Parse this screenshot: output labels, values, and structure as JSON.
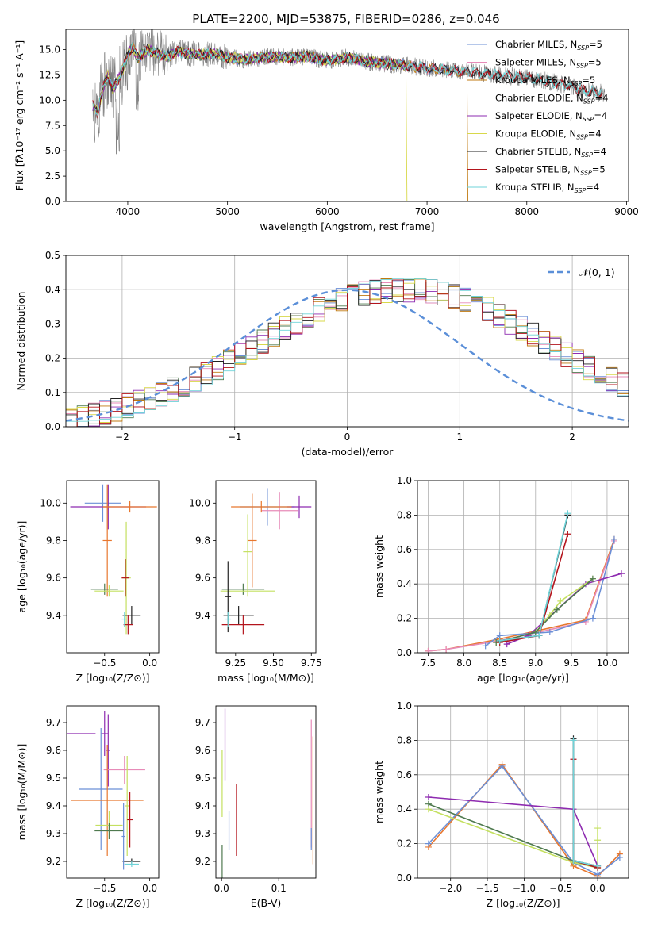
{
  "figure": {
    "title": "PLATE=2200, MJD=53875, FIBERID=0286, z=0.046",
    "colors": {
      "chabrier_miles": "#6b8fd6",
      "salpeter_miles": "#e78bb8",
      "kroupa_miles": "#c07a10",
      "chabrier_elodie": "#4f7a4f",
      "salpeter_elodie": "#8e2bb0",
      "kroupa_elodie": "#d8d84a",
      "chabrier_stelib": "#222222",
      "salpeter_stelib": "#b3141c",
      "kroupa_stelib": "#6fd3d8",
      "observed": "#7f7f7f",
      "miles_family": "#e8772e",
      "elodie_family": "#c4e060",
      "gauss": "#5b8fd8"
    }
  },
  "chart_data": [
    {
      "id": "spectrum",
      "type": "line",
      "title": "PLATE=2200, MJD=53875, FIBERID=0286, z=0.046",
      "xlabel": "wavelength [Angstrom, rest frame]",
      "ylabel": "Flux [fλ10⁻¹⁷ erg cm⁻² s⁻¹ A⁻¹]",
      "xlim": [
        3380,
        9020
      ],
      "ylim": [
        0,
        17
      ],
      "xticks": [
        4000,
        5000,
        6000,
        7000,
        8000,
        9000
      ],
      "yticks": [
        0.0,
        2.5,
        5.0,
        7.5,
        10.0,
        12.5,
        15.0
      ],
      "grid": false,
      "legend_position": "right",
      "spectrum_shape": {
        "x": [
          3650,
          3700,
          3750,
          3800,
          3850,
          3900,
          3950,
          4000,
          4050,
          4100,
          4200,
          4300,
          4400,
          4500,
          4700,
          4900,
          5000,
          5200,
          5400,
          5600,
          5800,
          6000,
          6200,
          6400,
          6600,
          6800,
          7000,
          7200,
          7400,
          7600,
          7800,
          8000,
          8200,
          8400,
          8600,
          8800
        ],
        "y": [
          9.5,
          8.8,
          11.2,
          12.5,
          11.0,
          12.0,
          13.0,
          14.5,
          15.2,
          14.2,
          15.0,
          14.6,
          14.3,
          14.8,
          14.5,
          14.6,
          14.2,
          14.0,
          14.3,
          14.2,
          14.3,
          13.9,
          14.2,
          13.8,
          13.6,
          13.4,
          13.2,
          13.0,
          12.8,
          12.6,
          12.4,
          12.2,
          11.9,
          11.5,
          10.9,
          10.7
        ]
      },
      "series": [
        {
          "name": "Chabrier MILES, N",
          "nssp": "=5",
          "color_key": "chabrier_miles",
          "end": 7400
        },
        {
          "name": "Salpeter MILES, N",
          "nssp": "=5",
          "color_key": "salpeter_miles",
          "end": 7400
        },
        {
          "name": "Kroupa MILES, N",
          "nssp": "=5",
          "color_key": "kroupa_miles",
          "end": 7400,
          "drop": 7410
        },
        {
          "name": "Chabrier ELODIE, N",
          "nssp": "=4",
          "color_key": "chabrier_elodie",
          "end": 6790
        },
        {
          "name": "Salpeter ELODIE, N",
          "nssp": "=4",
          "color_key": "salpeter_elodie",
          "end": 6790
        },
        {
          "name": "Kroupa ELODIE, N",
          "nssp": "=4",
          "color_key": "kroupa_elodie",
          "end": 6790,
          "drop": 6800
        },
        {
          "name": "Chabrier STELIB, N",
          "nssp": "=4",
          "color_key": "chabrier_stelib",
          "end": 8760
        },
        {
          "name": "Salpeter STELIB, N",
          "nssp": "=5",
          "color_key": "salpeter_stelib",
          "end": 8760
        },
        {
          "name": "Kroupa STELIB, N",
          "nssp": "=4",
          "color_key": "kroupa_stelib",
          "end": 8760
        }
      ]
    },
    {
      "id": "residuals",
      "type": "histogram",
      "xlabel": "(data-model)/error",
      "ylabel": "Normed distribution",
      "xlim": [
        -2.5,
        2.5
      ],
      "ylim": [
        0,
        0.5
      ],
      "xticks": [
        -2,
        -1,
        0,
        1,
        2
      ],
      "yticks": [
        0.0,
        0.1,
        0.2,
        0.3,
        0.4,
        0.5
      ],
      "grid": true,
      "legend": "𝒩(0, 1)",
      "legend_position": "top-right",
      "bin_width": 0.1,
      "bin_start": -2.5,
      "base_profile": [
        0.021,
        0.026,
        0.034,
        0.042,
        0.051,
        0.061,
        0.071,
        0.082,
        0.095,
        0.108,
        0.123,
        0.139,
        0.155,
        0.172,
        0.19,
        0.21,
        0.229,
        0.248,
        0.268,
        0.287,
        0.305,
        0.324,
        0.342,
        0.357,
        0.37,
        0.38,
        0.389,
        0.395,
        0.397,
        0.398,
        0.398,
        0.397,
        0.395,
        0.389,
        0.38,
        0.37,
        0.357,
        0.342,
        0.324,
        0.305,
        0.287,
        0.268,
        0.248,
        0.229,
        0.21,
        0.19,
        0.172,
        0.155,
        0.139,
        0.123
      ],
      "gauss": {
        "mean": 0,
        "sigma": 1
      }
    },
    {
      "id": "age_vs_Z",
      "type": "errorbar",
      "xlabel": "Z [log₁₀(Z/Z⊙)]",
      "ylabel": "age  [log₁₀(age/yr)]",
      "xlim": [
        -0.92,
        0.1
      ],
      "ylim": [
        9.2,
        10.12
      ],
      "xticks": [
        -0.5,
        0.0
      ],
      "yticks": [
        9.4,
        9.6,
        9.8,
        10.0
      ],
      "points": [
        {
          "x": -0.52,
          "y": 10.0,
          "xerr": 0.2,
          "yerr": 0.1,
          "color_key": "chabrier_miles"
        },
        {
          "x": -0.46,
          "y": 9.98,
          "xerr": 0.42,
          "yerr": 0.12,
          "color_key": "salpeter_elodie"
        },
        {
          "x": -0.22,
          "y": 9.98,
          "xerr": 0.3,
          "yerr": 0.03,
          "color_key": "miles_family"
        },
        {
          "x": -0.47,
          "y": 9.8,
          "xerr": 0.05,
          "yerr": 0.3,
          "color_key": "miles_family"
        },
        {
          "x": -0.26,
          "y": 9.6,
          "xerr": 0.05,
          "yerr": 0.3,
          "color_key": "elodie_family"
        },
        {
          "x": -0.5,
          "y": 9.54,
          "xerr": 0.15,
          "yerr": 0.03,
          "color_key": "chabrier_elodie"
        },
        {
          "x": -0.45,
          "y": 9.53,
          "xerr": 0.16,
          "yerr": 0.03,
          "color_key": "elodie_family"
        },
        {
          "x": -0.27,
          "y": 9.6,
          "xerr": 0.04,
          "yerr": 0.1,
          "color_key": "salpeter_stelib"
        },
        {
          "x": -0.2,
          "y": 9.4,
          "xerr": 0.1,
          "yerr": 0.05,
          "color_key": "chabrier_stelib"
        },
        {
          "x": -0.24,
          "y": 9.35,
          "xerr": 0.05,
          "yerr": 0.05,
          "color_key": "salpeter_stelib"
        },
        {
          "x": -0.28,
          "y": 9.38,
          "xerr": 0.03,
          "yerr": 0.04,
          "color_key": "kroupa_stelib"
        }
      ]
    },
    {
      "id": "age_vs_mass",
      "type": "errorbar",
      "xlabel": "mass [log₁₀(M/M⊙)]",
      "ylabel": "",
      "xlim": [
        9.12,
        9.78
      ],
      "ylim": [
        9.2,
        10.12
      ],
      "xticks": [
        9.25,
        9.5,
        9.75
      ],
      "yticks": [
        9.4,
        9.6,
        9.8,
        10.0
      ],
      "points": [
        {
          "x": 9.46,
          "y": 9.98,
          "xerr": 0.18,
          "yerr": 0.1,
          "color_key": "chabrier_miles"
        },
        {
          "x": 9.54,
          "y": 9.96,
          "xerr": 0.12,
          "yerr": 0.1,
          "color_key": "salpeter_miles"
        },
        {
          "x": 9.67,
          "y": 9.98,
          "xerr": 0.08,
          "yerr": 0.06,
          "color_key": "salpeter_elodie"
        },
        {
          "x": 9.42,
          "y": 9.98,
          "xerr": 0.2,
          "yerr": 0.03,
          "color_key": "miles_family"
        },
        {
          "x": 9.36,
          "y": 9.8,
          "xerr": 0.03,
          "yerr": 0.25,
          "color_key": "miles_family"
        },
        {
          "x": 9.3,
          "y": 9.54,
          "xerr": 0.14,
          "yerr": 0.03,
          "color_key": "chabrier_elodie"
        },
        {
          "x": 9.33,
          "y": 9.53,
          "xerr": 0.18,
          "yerr": 0.03,
          "color_key": "elodie_family"
        },
        {
          "x": 9.33,
          "y": 9.74,
          "xerr": 0.03,
          "yerr": 0.2,
          "color_key": "elodie_family"
        },
        {
          "x": 9.2,
          "y": 9.5,
          "xerr": 0.02,
          "yerr": 0.19,
          "color_key": "chabrier_stelib"
        },
        {
          "x": 9.27,
          "y": 9.4,
          "xerr": 0.1,
          "yerr": 0.05,
          "color_key": "chabrier_stelib"
        },
        {
          "x": 9.3,
          "y": 9.35,
          "xerr": 0.14,
          "yerr": 0.05,
          "color_key": "salpeter_stelib"
        },
        {
          "x": 9.2,
          "y": 9.38,
          "xerr": 0.02,
          "yerr": 0.04,
          "color_key": "kroupa_stelib"
        }
      ]
    },
    {
      "id": "weight_vs_age",
      "type": "line",
      "xlabel": "age  [log₁₀(age/yr)]",
      "ylabel": "mass weight",
      "xlim": [
        7.35,
        10.3
      ],
      "ylim": [
        0,
        1
      ],
      "xticks": [
        7.5,
        8.0,
        8.5,
        9.0,
        9.5,
        10.0
      ],
      "yticks": [
        0.0,
        0.2,
        0.4,
        0.6,
        0.8,
        1.0
      ],
      "grid": true,
      "series": [
        {
          "color_key": "miles_family",
          "x": [
            7.5,
            7.75,
            8.5,
            9.7,
            10.1
          ],
          "y": [
            0.01,
            0.02,
            0.08,
            0.19,
            0.66
          ]
        },
        {
          "color_key": "salpeter_miles",
          "x": [
            7.5,
            7.75,
            8.5,
            9.7,
            10.1
          ],
          "y": [
            0.01,
            0.02,
            0.07,
            0.18,
            0.65
          ]
        },
        {
          "color_key": "chabrier_miles",
          "x": [
            8.3,
            8.5,
            9.2,
            9.8,
            10.1
          ],
          "y": [
            0.04,
            0.1,
            0.12,
            0.2,
            0.66
          ]
        },
        {
          "color_key": "salpeter_elodie",
          "x": [
            8.6,
            8.9,
            9.7,
            10.2
          ],
          "y": [
            0.05,
            0.1,
            0.4,
            0.46
          ]
        },
        {
          "color_key": "elodie_family",
          "x": [
            8.45,
            9.0,
            9.2,
            9.35,
            9.8
          ],
          "y": [
            0.06,
            0.12,
            0.22,
            0.3,
            0.43
          ]
        },
        {
          "color_key": "chabrier_elodie",
          "x": [
            8.45,
            9.0,
            9.3,
            9.8
          ],
          "y": [
            0.06,
            0.12,
            0.25,
            0.43
          ]
        },
        {
          "color_key": "salpeter_stelib",
          "x": [
            8.5,
            9.05,
            9.45
          ],
          "y": [
            0.06,
            0.1,
            0.69
          ]
        },
        {
          "color_key": "chabrier_stelib",
          "x": [
            8.5,
            9.05,
            9.45
          ],
          "y": [
            0.07,
            0.1,
            0.8
          ]
        },
        {
          "color_key": "kroupa_stelib",
          "x": [
            8.5,
            9.05,
            9.45
          ],
          "y": [
            0.07,
            0.1,
            0.81
          ]
        }
      ]
    },
    {
      "id": "mass_vs_Z",
      "type": "errorbar",
      "xlabel": "Z [log₁₀(Z/Z⊙)]",
      "ylabel": "mass [log₁₀(M/M⊙)]",
      "xlim": [
        -0.92,
        0.1
      ],
      "ylim": [
        9.14,
        9.76
      ],
      "xticks": [
        -0.5,
        0.0
      ],
      "yticks": [
        9.2,
        9.3,
        9.4,
        9.5,
        9.6,
        9.7
      ],
      "points": [
        {
          "x": -0.84,
          "y": 9.66,
          "xerr": 0.0,
          "yerr": 0.0,
          "color_key": "salpeter_elodie",
          "hline": [
            -0.92,
            -0.6
          ]
        },
        {
          "x": -0.5,
          "y": 9.66,
          "xerr": 0.04,
          "yerr": 0.08,
          "color_key": "salpeter_elodie"
        },
        {
          "x": -0.46,
          "y": 9.6,
          "xerr": 0.02,
          "yerr": 0.13,
          "color_key": "salpeter_elodie"
        },
        {
          "x": -0.54,
          "y": 9.46,
          "xerr": 0.24,
          "yerr": 0.22,
          "color_key": "chabrier_miles"
        },
        {
          "x": -0.28,
          "y": 9.53,
          "xerr": 0.23,
          "yerr": 0.05,
          "color_key": "salpeter_miles"
        },
        {
          "x": -0.47,
          "y": 9.42,
          "xerr": 0.4,
          "yerr": 0.2,
          "color_key": "miles_family"
        },
        {
          "x": -0.25,
          "y": 9.4,
          "xerr": 0.02,
          "yerr": 0.18,
          "color_key": "elodie_family"
        },
        {
          "x": -0.45,
          "y": 9.33,
          "xerr": 0.15,
          "yerr": 0.05,
          "color_key": "elodie_family"
        },
        {
          "x": -0.45,
          "y": 9.31,
          "xerr": 0.16,
          "yerr": 0.03,
          "color_key": "chabrier_elodie"
        },
        {
          "x": -0.22,
          "y": 9.35,
          "xerr": 0.03,
          "yerr": 0.1,
          "color_key": "salpeter_stelib"
        },
        {
          "x": -0.2,
          "y": 9.2,
          "xerr": 0.1,
          "yerr": 0.01,
          "color_key": "chabrier_stelib"
        },
        {
          "x": -0.29,
          "y": 9.29,
          "xerr": 0.02,
          "yerr": 0.12,
          "color_key": "chabrier_miles"
        },
        {
          "x": -0.2,
          "y": 9.19,
          "xerr": 0.08,
          "yerr": 0.01,
          "color_key": "kroupa_stelib"
        }
      ]
    },
    {
      "id": "mass_vs_EBV",
      "type": "errorbar",
      "xlabel": "E(B-V)",
      "ylabel": "",
      "xlim": [
        -0.01,
        0.165
      ],
      "ylim": [
        9.14,
        9.76
      ],
      "xticks": [
        0.0,
        0.1
      ],
      "yticks": [
        9.2,
        9.3,
        9.4,
        9.5,
        9.6,
        9.7
      ],
      "points": [
        {
          "x": 0.006,
          "y": 9.62,
          "xerr": 0,
          "yerr": 0.13,
          "color_key": "salpeter_elodie"
        },
        {
          "x": 0.001,
          "y": 9.48,
          "xerr": 0,
          "yerr": 0.12,
          "color_key": "elodie_family"
        },
        {
          "x": 0.001,
          "y": 9.19,
          "xerr": 0,
          "yerr": 0.07,
          "color_key": "chabrier_elodie"
        },
        {
          "x": 0.013,
          "y": 9.31,
          "xerr": 0,
          "yerr": 0.07,
          "color_key": "chabrier_miles"
        },
        {
          "x": 0.026,
          "y": 9.35,
          "xerr": 0,
          "yerr": 0.13,
          "color_key": "salpeter_stelib"
        },
        {
          "x": 0.157,
          "y": 9.48,
          "xerr": 0,
          "yerr": 0.23,
          "color_key": "salpeter_miles"
        },
        {
          "x": 0.16,
          "y": 9.42,
          "xerr": 0,
          "yerr": 0.23,
          "color_key": "miles_family"
        },
        {
          "x": 0.157,
          "y": 9.28,
          "xerr": 0,
          "yerr": 0.04,
          "color_key": "chabrier_miles"
        }
      ]
    },
    {
      "id": "weight_vs_Z",
      "type": "line",
      "xlabel": "Z [log₁₀(Z/Z⊙)]",
      "ylabel": "mass weight",
      "xlim": [
        -2.45,
        0.42
      ],
      "ylim": [
        0,
        1
      ],
      "xticks": [
        -2.0,
        -1.5,
        -1.0,
        -0.5,
        0.0
      ],
      "yticks": [
        0.0,
        0.2,
        0.4,
        0.6,
        0.8,
        1.0
      ],
      "grid": true,
      "series": [
        {
          "color_key": "miles_family",
          "x": [
            -2.3,
            -1.3,
            -0.33,
            0.0,
            0.3
          ],
          "y": [
            0.18,
            0.66,
            0.07,
            0.01,
            0.14
          ]
        },
        {
          "color_key": "chabrier_miles",
          "x": [
            -2.3,
            -1.3,
            -0.33,
            0.0,
            0.3
          ],
          "y": [
            0.2,
            0.65,
            0.09,
            0.02,
            0.12
          ]
        },
        {
          "color_key": "salpeter_elodie",
          "x": [
            -2.3,
            -0.33,
            0.0
          ],
          "y": [
            0.47,
            0.4,
            0.07
          ]
        },
        {
          "color_key": "chabrier_elodie",
          "x": [
            -2.3,
            -0.33,
            0.0
          ],
          "y": [
            0.43,
            0.1,
            0.06
          ]
        },
        {
          "color_key": "elodie_family",
          "x": [
            -2.3,
            -0.33,
            0.0,
            0.0,
            0.0
          ],
          "y": [
            0.4,
            0.09,
            0.06,
            0.22,
            0.29
          ]
        },
        {
          "color_key": "salpeter_stelib",
          "x": [
            -0.33,
            -0.33,
            0.0
          ],
          "y": [
            0.69,
            0.1,
            0.06
          ]
        },
        {
          "color_key": "chabrier_stelib",
          "x": [
            -0.33,
            -0.33,
            0.0
          ],
          "y": [
            0.81,
            0.1,
            0.07
          ]
        },
        {
          "color_key": "kroupa_stelib",
          "x": [
            -0.33,
            -0.33,
            0.0
          ],
          "y": [
            0.8,
            0.1,
            0.07
          ]
        }
      ]
    }
  ]
}
